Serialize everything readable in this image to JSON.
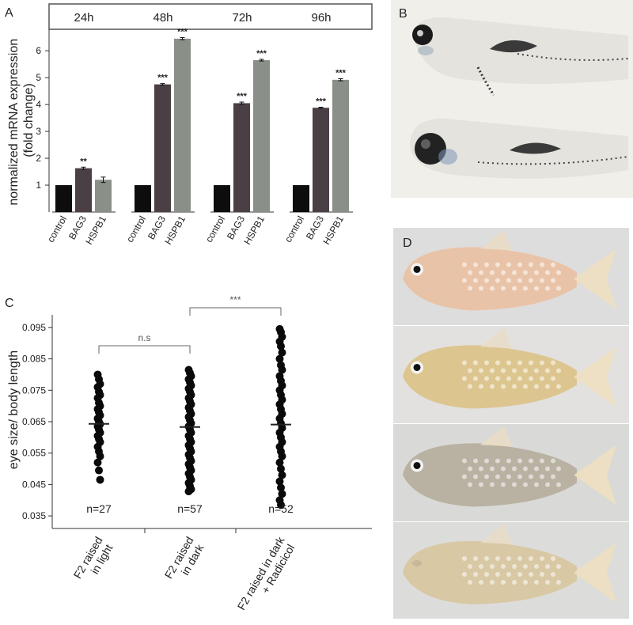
{
  "panel_labels": {
    "a": "A",
    "b": "B",
    "c": "C",
    "d": "D"
  },
  "chart_data": [
    {
      "type": "bar",
      "panel": "A",
      "ylabel": "normalized mRNA expression\n(fold change)",
      "ylim": [
        0,
        6.8
      ],
      "yticks": [
        1,
        2,
        3,
        4,
        5,
        6
      ],
      "groups": [
        {
          "label": "24h",
          "categories": [
            "control",
            "BAG3",
            "HSPB1"
          ],
          "values": [
            1.0,
            1.63,
            1.2
          ],
          "errors": [
            0,
            0.04,
            0.1
          ],
          "significance": [
            "",
            "**",
            ""
          ]
        },
        {
          "label": "48h",
          "categories": [
            "control",
            "BAG3",
            "HSPB1"
          ],
          "values": [
            1.0,
            4.75,
            6.45
          ],
          "errors": [
            0,
            0.03,
            0.04
          ],
          "significance": [
            "",
            "***",
            "***"
          ]
        },
        {
          "label": "72h",
          "categories": [
            "control",
            "BAG3",
            "HSPB1"
          ],
          "values": [
            1.0,
            4.05,
            5.65
          ],
          "errors": [
            0,
            0.04,
            0.03
          ],
          "significance": [
            "",
            "***",
            "***"
          ]
        },
        {
          "label": "96h",
          "categories": [
            "control",
            "BAG3",
            "HSPB1"
          ],
          "values": [
            1.0,
            3.88,
            4.92
          ],
          "errors": [
            0,
            0.02,
            0.04
          ],
          "significance": [
            "",
            "***",
            "***"
          ]
        }
      ],
      "colors": {
        "control": "#0d0d0d",
        "BAG3": "#4a3f45",
        "HSPB1": "#8a8f88"
      }
    },
    {
      "type": "scatter",
      "panel": "C",
      "ylabel": "eye size/ body length",
      "ylim": [
        0.031,
        0.099
      ],
      "yticks": [
        "0.035",
        "0.045",
        "0.055",
        "0.065",
        "0.075",
        "0.085",
        "0.095"
      ],
      "groups": [
        {
          "label": "F2 raised\nin light",
          "n_label": "n=27",
          "mean": 0.0643,
          "values": [
            0.08,
            0.0785,
            0.077,
            0.076,
            0.0745,
            0.0735,
            0.0725,
            0.071,
            0.07,
            0.069,
            0.068,
            0.067,
            0.066,
            0.065,
            0.0642,
            0.0635,
            0.0625,
            0.0615,
            0.0605,
            0.0595,
            0.0585,
            0.057,
            0.0555,
            0.054,
            0.052,
            0.0495,
            0.0465
          ]
        },
        {
          "label": "F2 raised\nin dark",
          "n_label": "n=57",
          "mean": 0.0633,
          "values": [
            0.0815,
            0.0805,
            0.0795,
            0.0785,
            0.0775,
            0.0765,
            0.0755,
            0.0745,
            0.0735,
            0.0725,
            0.0715,
            0.0705,
            0.0695,
            0.0685,
            0.0675,
            0.0665,
            0.0655,
            0.0645,
            0.0635,
            0.0625,
            0.0615,
            0.0605,
            0.0595,
            0.0585,
            0.0575,
            0.0565,
            0.0555,
            0.0545,
            0.0535,
            0.0525,
            0.0515,
            0.0505,
            0.0495,
            0.0485,
            0.0475,
            0.0465,
            0.0455,
            0.0445,
            0.0435,
            0.0428
          ]
        },
        {
          "label": "F2 raised in dark\n+ Radicicol",
          "n_label": "n=52",
          "mean": 0.0641,
          "values": [
            0.0945,
            0.0935,
            0.092,
            0.0905,
            0.089,
            0.087,
            0.085,
            0.083,
            0.0815,
            0.0795,
            0.078,
            0.0765,
            0.075,
            0.0735,
            0.072,
            0.0705,
            0.069,
            0.0675,
            0.066,
            0.0645,
            0.063,
            0.0615,
            0.06,
            0.0585,
            0.057,
            0.0555,
            0.054,
            0.052,
            0.05,
            0.048,
            0.046,
            0.044,
            0.042,
            0.04,
            0.0385
          ]
        }
      ],
      "brackets": [
        {
          "from": 0,
          "to": 1,
          "label": "n.s"
        },
        {
          "from": 1,
          "to": 2,
          "label": "***"
        }
      ]
    }
  ]
}
